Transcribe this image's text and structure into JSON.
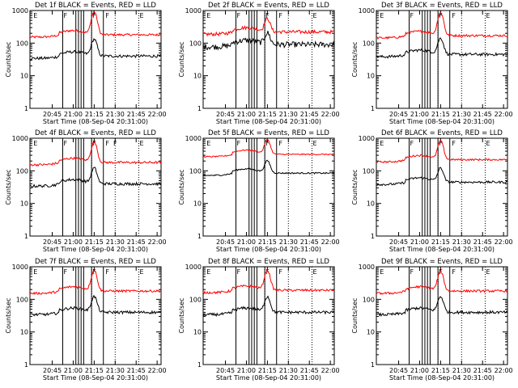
{
  "chart_data": [
    {
      "type": "line",
      "title": "Det 1f BLACK = Events, RED = LLD",
      "xlabel": "Start Time (08-Sep-04 20:31:00)",
      "ylabel": "Counts/sec",
      "yscale": "log",
      "ylim": [
        1,
        1000
      ],
      "xlim": [
        0,
        100
      ],
      "x_tick_labels": [
        "20:45",
        "21:00",
        "21:15",
        "21:30",
        "21:45",
        "22:00"
      ],
      "y_tick_labels": [
        "1",
        "10",
        "100",
        "1000"
      ],
      "markers": [
        "E",
        "F",
        "F",
        "F",
        "E"
      ],
      "series": [
        {
          "color": "#ff0000",
          "baseline": 180,
          "peak": 900,
          "noise": 0.08
        },
        {
          "color": "#000000",
          "baseline": 40,
          "peak": 130,
          "noise": 0.1
        }
      ]
    },
    {
      "type": "line",
      "title": "Det 2f BLACK = Events, RED = LLD",
      "xlabel": "Start Time (08-Sep-04 20:31:00)",
      "ylabel": "Counts/sec",
      "yscale": "log",
      "ylim": [
        1,
        1000
      ],
      "xlim": [
        0,
        100
      ],
      "x_tick_labels": [
        "20:45",
        "21:00",
        "21:15",
        "21:30",
        "21:45",
        "22:00"
      ],
      "y_tick_labels": [
        "1",
        "10",
        "100",
        "1000"
      ],
      "markers": [
        "E",
        "F",
        "F",
        "F",
        "E"
      ],
      "series": [
        {
          "color": "#ff0000",
          "baseline": 220,
          "peak": 550,
          "noise": 0.12
        },
        {
          "color": "#000000",
          "baseline": 90,
          "peak": 200,
          "noise": 0.2
        }
      ]
    },
    {
      "type": "line",
      "title": "Det 3f BLACK = Events, RED = LLD",
      "xlabel": "Start Time (08-Sep-04 20:31:00)",
      "ylabel": "Counts/sec",
      "yscale": "log",
      "ylim": [
        1,
        1000
      ],
      "xlim": [
        0,
        100
      ],
      "x_tick_labels": [
        "20:45",
        "21:00",
        "21:15",
        "21:30",
        "21:45",
        "22:00"
      ],
      "y_tick_labels": [
        "1",
        "10",
        "100",
        "1000"
      ],
      "markers": [
        "E",
        "F",
        "F",
        "F",
        "E"
      ],
      "series": [
        {
          "color": "#ff0000",
          "baseline": 170,
          "peak": 850,
          "noise": 0.08
        },
        {
          "color": "#000000",
          "baseline": 45,
          "peak": 140,
          "noise": 0.1
        }
      ]
    },
    {
      "type": "line",
      "title": "Det 4f BLACK = Events, RED = LLD",
      "xlabel": "Start Time (08-Sep-04 20:31:00)",
      "ylabel": "Counts/sec",
      "yscale": "log",
      "ylim": [
        1,
        1000
      ],
      "xlim": [
        0,
        100
      ],
      "x_tick_labels": [
        "20:45",
        "21:00",
        "21:15",
        "21:30",
        "21:45",
        "22:00"
      ],
      "y_tick_labels": [
        "1",
        "10",
        "100",
        "1000"
      ],
      "markers": [
        "E",
        "F",
        "F",
        "F",
        "F",
        "E"
      ],
      "series": [
        {
          "color": "#ff0000",
          "baseline": 180,
          "peak": 750,
          "noise": 0.08
        },
        {
          "color": "#000000",
          "baseline": 40,
          "peak": 120,
          "noise": 0.1
        }
      ]
    },
    {
      "type": "line",
      "title": "Det 5f BLACK = Events, RED = LLD",
      "xlabel": "Start Time (08-Sep-04 20:31:00)",
      "ylabel": "Counts/sec",
      "yscale": "log",
      "ylim": [
        1,
        1000
      ],
      "xlim": [
        0,
        100
      ],
      "x_tick_labels": [
        "20:45",
        "21:00",
        "21:15",
        "21:30",
        "21:45",
        "22:00"
      ],
      "y_tick_labels": [
        "1",
        "10",
        "100",
        "1000"
      ],
      "markers": [
        "E",
        "F",
        "F",
        "F",
        "E"
      ],
      "series": [
        {
          "color": "#ff0000",
          "baseline": 320,
          "peak": 900,
          "noise": 0.04
        },
        {
          "color": "#000000",
          "baseline": 85,
          "peak": 200,
          "noise": 0.05
        }
      ]
    },
    {
      "type": "line",
      "title": "Det 6f BLACK = Events, RED = LLD",
      "xlabel": "Start Time (08-Sep-04 20:31:00)",
      "ylabel": "Counts/sec",
      "yscale": "log",
      "ylim": [
        1,
        1000
      ],
      "xlim": [
        0,
        100
      ],
      "x_tick_labels": [
        "20:45",
        "21:00",
        "21:15",
        "21:30",
        "21:45",
        "22:00"
      ],
      "y_tick_labels": [
        "1",
        "10",
        "100",
        "1000"
      ],
      "markers": [
        "E",
        "F",
        "F",
        "F",
        "E"
      ],
      "series": [
        {
          "color": "#ff0000",
          "baseline": 220,
          "peak": 800,
          "noise": 0.06
        },
        {
          "color": "#000000",
          "baseline": 45,
          "peak": 120,
          "noise": 0.08
        }
      ]
    },
    {
      "type": "line",
      "title": "Det 7f BLACK = Events, RED = LLD",
      "xlabel": "Start Time (08-Sep-04 20:31:00)",
      "ylabel": "Counts/sec",
      "yscale": "log",
      "ylim": [
        1,
        1000
      ],
      "xlim": [
        0,
        100
      ],
      "x_tick_labels": [
        "20:45",
        "21:00",
        "21:15",
        "21:30",
        "21:45",
        "22:00"
      ],
      "y_tick_labels": [
        "1",
        "10",
        "100",
        "1000"
      ],
      "markers": [
        "E",
        "F",
        "F",
        "F",
        "E"
      ],
      "series": [
        {
          "color": "#ff0000",
          "baseline": 180,
          "peak": 750,
          "noise": 0.08
        },
        {
          "color": "#000000",
          "baseline": 40,
          "peak": 120,
          "noise": 0.1
        }
      ]
    },
    {
      "type": "line",
      "title": "Det 8f BLACK = Events, RED = LLD",
      "xlabel": "Start Time (08-Sep-04 20:31:00)",
      "ylabel": "Counts/sec",
      "yscale": "log",
      "ylim": [
        1,
        1000
      ],
      "xlim": [
        0,
        100
      ],
      "x_tick_labels": [
        "20:45",
        "21:00",
        "21:15",
        "21:30",
        "21:45",
        "22:00"
      ],
      "y_tick_labels": [
        "1",
        "10",
        "100",
        "1000"
      ],
      "markers": [
        "E",
        "F",
        "F",
        "F",
        "E"
      ],
      "series": [
        {
          "color": "#ff0000",
          "baseline": 190,
          "peak": 750,
          "noise": 0.08
        },
        {
          "color": "#000000",
          "baseline": 40,
          "peak": 120,
          "noise": 0.1
        }
      ]
    },
    {
      "type": "line",
      "title": "Det 9f BLACK = Events, RED = LLD",
      "xlabel": "Start Time (08-Sep-04 20:31:00)",
      "ylabel": "Counts/sec",
      "yscale": "log",
      "ylim": [
        1,
        1000
      ],
      "xlim": [
        0,
        100
      ],
      "x_tick_labels": [
        "20:45",
        "21:00",
        "21:15",
        "21:30",
        "21:45",
        "22:00"
      ],
      "y_tick_labels": [
        "1",
        "10",
        "100",
        "1000"
      ],
      "markers": [
        "E",
        "F",
        "F",
        "F",
        "E"
      ],
      "series": [
        {
          "color": "#ff0000",
          "baseline": 180,
          "peak": 700,
          "noise": 0.08
        },
        {
          "color": "#000000",
          "baseline": 40,
          "peak": 120,
          "noise": 0.1
        }
      ]
    }
  ]
}
